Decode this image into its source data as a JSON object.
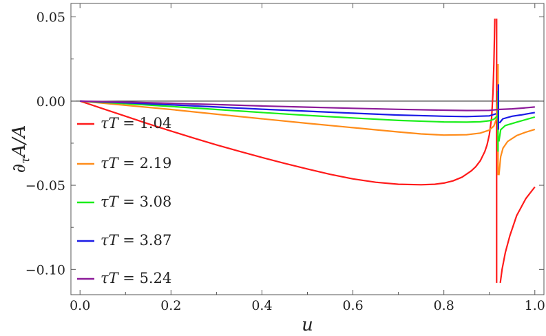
{
  "chart_data": {
    "type": "line",
    "title": "",
    "xlabel": "u",
    "ylabel": "∂τA/A",
    "xlim": [
      -0.02,
      1.02
    ],
    "ylim": [
      -0.115,
      0.058
    ],
    "x_ticks": [
      0.0,
      0.2,
      0.4,
      0.6,
      0.8,
      1.0
    ],
    "x_tick_labels": [
      "0.0",
      "0.2",
      "0.4",
      "0.6",
      "0.8",
      "1.0"
    ],
    "y_ticks": [
      0.05,
      0.0,
      -0.05,
      -0.1
    ],
    "y_tick_labels": [
      "0.05",
      "0.00",
      "−0.05",
      "−0.10"
    ],
    "grid": false,
    "legend_position": "left",
    "series": [
      {
        "name": "τT = 1.04",
        "label_var": "τT",
        "label_value": "1.04",
        "color": "#ff1a1a",
        "segments": [
          [
            [
              0.0,
              0.0
            ],
            [
              0.05,
              -0.0045
            ],
            [
              0.1,
              -0.009
            ],
            [
              0.15,
              -0.0135
            ],
            [
              0.2,
              -0.0178
            ],
            [
              0.25,
              -0.022
            ],
            [
              0.3,
              -0.026
            ],
            [
              0.35,
              -0.0298
            ],
            [
              0.4,
              -0.0335
            ],
            [
              0.45,
              -0.037
            ],
            [
              0.5,
              -0.0403
            ],
            [
              0.55,
              -0.0435
            ],
            [
              0.6,
              -0.0462
            ],
            [
              0.65,
              -0.0482
            ],
            [
              0.7,
              -0.0494
            ],
            [
              0.75,
              -0.0497
            ],
            [
              0.78,
              -0.0494
            ],
            [
              0.8,
              -0.0487
            ],
            [
              0.82,
              -0.0474
            ],
            [
              0.84,
              -0.0452
            ],
            [
              0.86,
              -0.0415
            ],
            [
              0.87,
              -0.039
            ],
            [
              0.88,
              -0.0355
            ],
            [
              0.89,
              -0.03
            ],
            [
              0.895,
              -0.026
            ],
            [
              0.9,
              -0.02
            ],
            [
              0.905,
              -0.01
            ],
            [
              0.908,
              0.005
            ],
            [
              0.91,
              0.022
            ],
            [
              0.912,
              0.049
            ]
          ],
          [
            [
              0.916,
              -0.108
            ],
            [
              0.916,
              0.049
            ]
          ],
          [
            [
              0.924,
              -0.108
            ],
            [
              0.928,
              -0.1
            ],
            [
              0.935,
              -0.09
            ],
            [
              0.945,
              -0.08
            ],
            [
              0.96,
              -0.068
            ],
            [
              0.98,
              -0.058
            ],
            [
              1.0,
              -0.051
            ]
          ]
        ]
      },
      {
        "name": "τT = 2.19",
        "label_var": "τT",
        "label_value": "2.19",
        "color": "#ff8c1a",
        "segments": [
          [
            [
              0.0,
              0.0
            ],
            [
              0.1,
              -0.0025
            ],
            [
              0.2,
              -0.005
            ],
            [
              0.3,
              -0.0078
            ],
            [
              0.4,
              -0.0105
            ],
            [
              0.5,
              -0.0132
            ],
            [
              0.6,
              -0.0158
            ],
            [
              0.7,
              -0.0183
            ],
            [
              0.75,
              -0.0195
            ],
            [
              0.8,
              -0.0202
            ],
            [
              0.85,
              -0.02
            ],
            [
              0.88,
              -0.019
            ],
            [
              0.9,
              -0.0172
            ],
            [
              0.91,
              -0.0148
            ],
            [
              0.915,
              -0.011
            ],
            [
              0.918,
              0.0
            ]
          ],
          [
            [
              0.919,
              0.022
            ],
            [
              0.919,
              -0.044
            ]
          ],
          [
            [
              0.921,
              -0.044
            ],
            [
              0.925,
              -0.033
            ],
            [
              0.93,
              -0.028
            ],
            [
              0.94,
              -0.024
            ],
            [
              0.96,
              -0.0205
            ],
            [
              0.98,
              -0.0185
            ],
            [
              1.0,
              -0.0168
            ]
          ]
        ]
      },
      {
        "name": "τT = 3.08",
        "label_var": "τT",
        "label_value": "3.08",
        "color": "#1aee1a",
        "segments": [
          [
            [
              0.0,
              0.0
            ],
            [
              0.1,
              -0.0015
            ],
            [
              0.2,
              -0.0032
            ],
            [
              0.3,
              -0.005
            ],
            [
              0.4,
              -0.0068
            ],
            [
              0.5,
              -0.0085
            ],
            [
              0.6,
              -0.01
            ],
            [
              0.7,
              -0.0115
            ],
            [
              0.8,
              -0.0124
            ],
            [
              0.85,
              -0.0125
            ],
            [
              0.88,
              -0.0123
            ],
            [
              0.9,
              -0.0117
            ],
            [
              0.91,
              -0.0108
            ],
            [
              0.917,
              -0.009
            ]
          ],
          [
            [
              0.919,
              0.006
            ],
            [
              0.919,
              -0.03
            ]
          ],
          [
            [
              0.921,
              -0.024
            ],
            [
              0.925,
              -0.017
            ],
            [
              0.935,
              -0.0145
            ],
            [
              0.96,
              -0.0125
            ],
            [
              0.98,
              -0.011
            ],
            [
              1.0,
              -0.0095
            ]
          ]
        ]
      },
      {
        "name": "τT = 3.87",
        "label_var": "τT",
        "label_value": "3.87",
        "color": "#1a1ae6",
        "segments": [
          [
            [
              0.0,
              0.0
            ],
            [
              0.1,
              -0.001
            ],
            [
              0.2,
              -0.0022
            ],
            [
              0.3,
              -0.0035
            ],
            [
              0.4,
              -0.0048
            ],
            [
              0.5,
              -0.006
            ],
            [
              0.6,
              -0.0072
            ],
            [
              0.7,
              -0.0083
            ],
            [
              0.8,
              -0.009
            ],
            [
              0.85,
              -0.0092
            ],
            [
              0.9,
              -0.0088
            ],
            [
              0.915,
              -0.0075
            ]
          ],
          [
            [
              0.92,
              0.01
            ],
            [
              0.92,
              -0.017
            ]
          ],
          [
            [
              0.922,
              -0.013
            ],
            [
              0.93,
              -0.0105
            ],
            [
              0.95,
              -0.009
            ],
            [
              0.97,
              -0.0082
            ],
            [
              1.0,
              -0.0068
            ]
          ]
        ]
      },
      {
        "name": "τT = 5.24",
        "label_var": "τT",
        "label_value": "5.24",
        "color": "#8c1a99",
        "segments": [
          [
            [
              0.0,
              0.0
            ],
            [
              0.1,
              -0.0006
            ],
            [
              0.2,
              -0.0013
            ],
            [
              0.3,
              -0.0021
            ],
            [
              0.4,
              -0.0029
            ],
            [
              0.5,
              -0.0036
            ],
            [
              0.6,
              -0.0043
            ],
            [
              0.7,
              -0.0049
            ],
            [
              0.8,
              -0.0054
            ],
            [
              0.85,
              -0.0056
            ],
            [
              0.9,
              -0.0055
            ],
            [
              0.92,
              -0.005
            ],
            [
              0.95,
              -0.0046
            ],
            [
              0.97,
              -0.0042
            ],
            [
              1.0,
              -0.0035
            ]
          ]
        ]
      }
    ]
  }
}
